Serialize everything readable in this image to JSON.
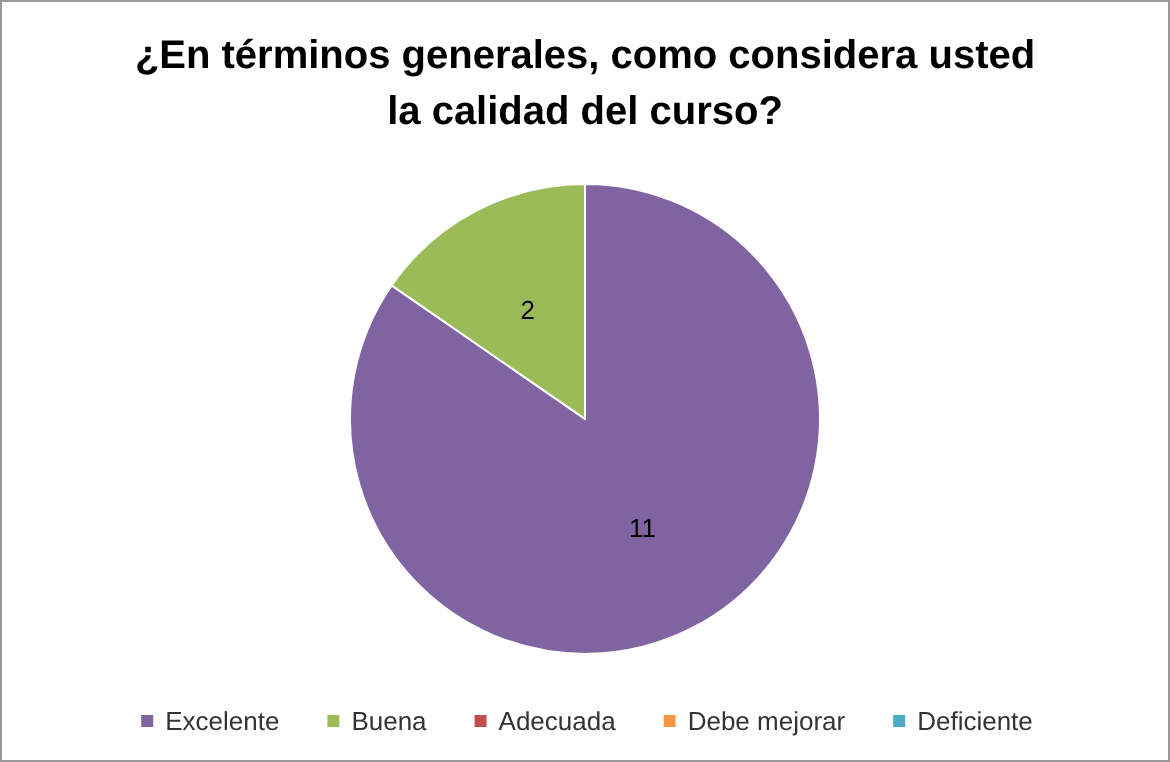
{
  "chart_data": {
    "type": "pie",
    "title": "¿En términos generales, como considera usted\nla calidad del curso?",
    "categories": [
      "Excelente",
      "Buena",
      "Adecuada",
      "Debe mejorar",
      "Deficiente"
    ],
    "values": [
      11,
      2,
      0,
      0,
      0
    ],
    "colors": [
      "#8064a2",
      "#9bbb59",
      "#c0504d",
      "#f79646",
      "#4bacc6"
    ],
    "value_labels": [
      "11",
      "2",
      null,
      null,
      null
    ],
    "legend": "bottom"
  }
}
